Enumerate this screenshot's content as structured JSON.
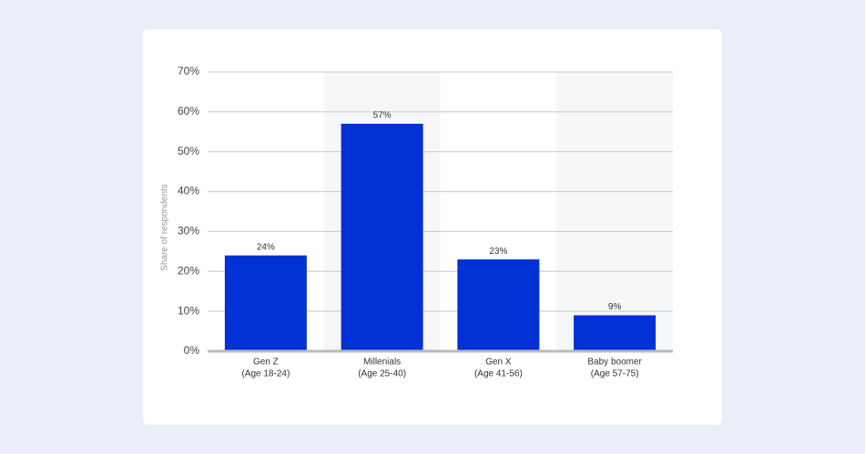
{
  "chart_data": {
    "type": "bar",
    "y_label": "Share of respondents",
    "categories": [
      [
        "Gen Z",
        "(Age 18-24)"
      ],
      [
        "Millenials",
        "(Age 25-40)"
      ],
      [
        "Gen X",
        "(Age 41-56)"
      ],
      [
        "Baby boomer",
        "(Age 57-75)"
      ]
    ],
    "values": [
      24,
      57,
      23,
      9
    ],
    "value_labels": [
      "24%",
      "57%",
      "23%",
      "9%"
    ],
    "color": "#0031d4",
    "ylim": [
      0,
      70
    ],
    "yticks": [
      {
        "value": 0,
        "label": "0%"
      },
      {
        "value": 10,
        "label": "10%"
      },
      {
        "value": 20,
        "label": "20%"
      },
      {
        "value": 30,
        "label": "30%"
      },
      {
        "value": 40,
        "label": "40%"
      },
      {
        "value": 50,
        "label": "50%"
      },
      {
        "value": 60,
        "label": "60%"
      },
      {
        "value": 70,
        "label": "70%"
      }
    ],
    "grid": true
  }
}
